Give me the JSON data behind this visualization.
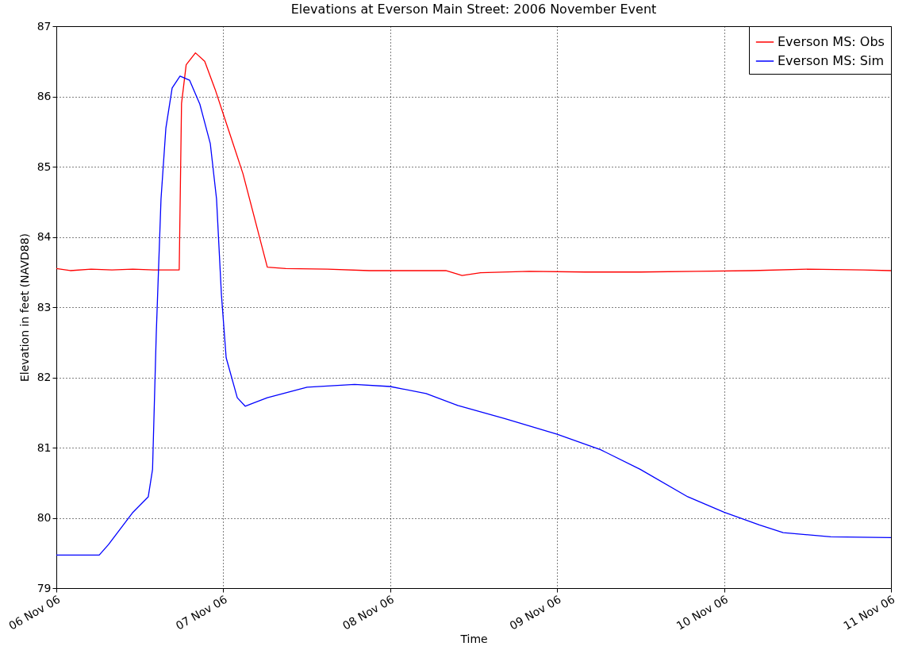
{
  "chart_data": {
    "type": "line",
    "title": "Elevations at Everson Main Street: 2006 November Event",
    "xlabel": "Time",
    "ylabel": "Elevation in feet (NAVD88)",
    "xlim": [
      "2006-11-06",
      "2006-11-11"
    ],
    "xticks": [
      {
        "value": "2006-11-06",
        "label": "06 Nov 06"
      },
      {
        "value": "2006-11-07",
        "label": "07 Nov 06"
      },
      {
        "value": "2006-11-08",
        "label": "08 Nov 06"
      },
      {
        "value": "2006-11-09",
        "label": "09 Nov 06"
      },
      {
        "value": "2006-11-10",
        "label": "10 Nov 06"
      },
      {
        "value": "2006-11-11",
        "label": "11 Nov 06"
      }
    ],
    "ylim": [
      79,
      87
    ],
    "yticks": [
      79,
      80,
      81,
      82,
      83,
      84,
      85,
      86,
      87
    ],
    "grid": true,
    "legend": "top right",
    "series": [
      {
        "name": "Everson MS: Obs",
        "color": "#ff0000",
        "x": [
          "2006-11-06T00:00",
          "2006-11-06T02:00",
          "2006-11-06T05:00",
          "2006-11-06T08:00",
          "2006-11-06T11:00",
          "2006-11-06T14:00",
          "2006-11-06T17:40",
          "2006-11-06T18:00",
          "2006-11-06T18:40",
          "2006-11-06T20:00",
          "2006-11-06T21:20",
          "2006-11-06T22:50",
          "2006-11-07T00:50",
          "2006-11-07T02:50",
          "2006-11-07T06:20",
          "2006-11-07T09:00",
          "2006-11-07T15:00",
          "2006-11-07T21:00",
          "2006-11-08T03:00",
          "2006-11-08T08:00",
          "2006-11-08T10:20",
          "2006-11-08T13:00",
          "2006-11-08T20:00",
          "2006-11-09T04:00",
          "2006-11-09T12:00",
          "2006-11-09T20:00",
          "2006-11-10T04:00",
          "2006-11-10T12:00",
          "2006-11-10T20:00",
          "2006-11-11T00:00"
        ],
        "values": [
          83.55,
          83.52,
          83.54,
          83.53,
          83.54,
          83.53,
          83.53,
          85.9,
          86.45,
          86.62,
          86.5,
          86.1,
          85.5,
          84.9,
          83.57,
          83.55,
          83.54,
          83.52,
          83.52,
          83.52,
          83.45,
          83.49,
          83.51,
          83.5,
          83.5,
          83.51,
          83.52,
          83.54,
          83.53,
          83.52
        ]
      },
      {
        "name": "Everson MS: Sim",
        "color": "#0000ff",
        "x": [
          "2006-11-06T00:00",
          "2006-11-06T06:10",
          "2006-11-06T07:30",
          "2006-11-06T10:56",
          "2006-11-06T13:13",
          "2006-11-06T13:50",
          "2006-11-06T14:22",
          "2006-11-06T15:03",
          "2006-11-06T15:45",
          "2006-11-06T16:39",
          "2006-11-06T17:47",
          "2006-11-06T19:10",
          "2006-11-06T20:38",
          "2006-11-06T22:08",
          "2006-11-06T23:02",
          "2006-11-06T23:44",
          "2006-11-07T00:25",
          "2006-11-07T02:01",
          "2006-11-07T03:09",
          "2006-11-07T06:20",
          "2006-11-07T12:03",
          "2006-11-07T18:53",
          "2006-11-08T00:00",
          "2006-11-08T05:10",
          "2006-11-08T09:43",
          "2006-11-08T16:33",
          "2006-11-09T00:00",
          "2006-11-09T06:15",
          "2006-11-09T11:57",
          "2006-11-09T18:47",
          "2006-11-10T00:00",
          "2006-11-10T05:04",
          "2006-11-10T08:30",
          "2006-11-10T15:20",
          "2006-11-11T00:00"
        ],
        "values": [
          79.47,
          79.47,
          79.62,
          80.07,
          80.3,
          80.69,
          82.62,
          84.54,
          85.55,
          86.12,
          86.29,
          86.23,
          85.89,
          85.33,
          84.54,
          83.18,
          82.28,
          81.71,
          81.59,
          81.71,
          81.86,
          81.9,
          81.87,
          81.77,
          81.6,
          81.41,
          81.19,
          80.97,
          80.69,
          80.3,
          80.08,
          79.9,
          79.79,
          79.73,
          79.72
        ]
      }
    ]
  }
}
